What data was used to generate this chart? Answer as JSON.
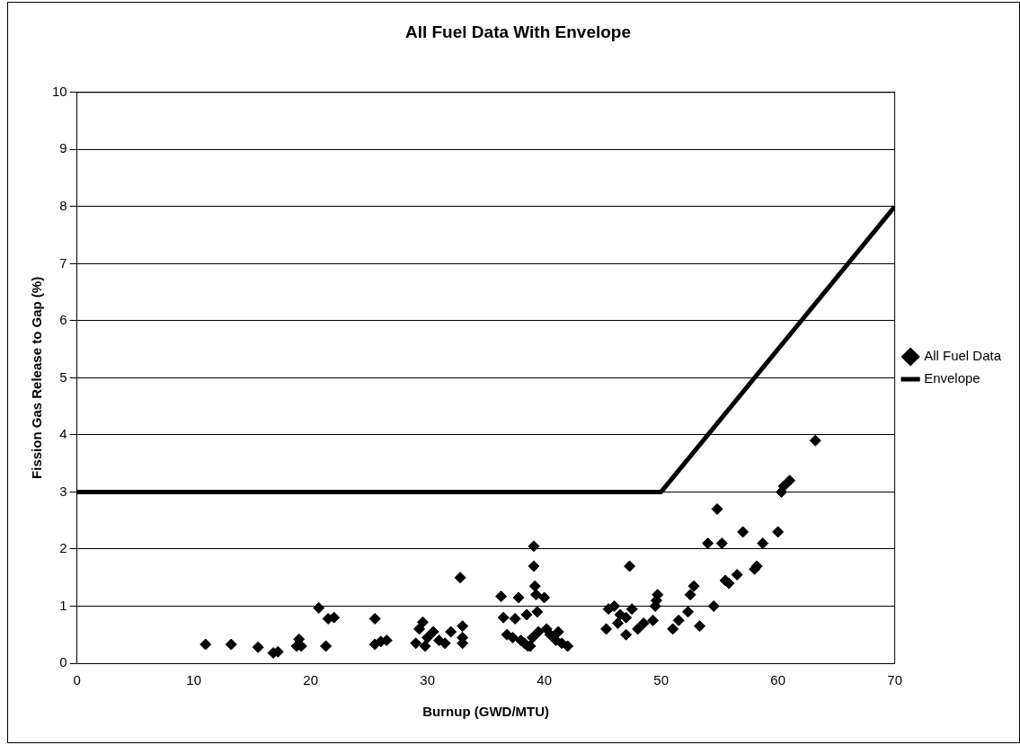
{
  "chart_data": {
    "type": "scatter",
    "title": "All Fuel Data With Envelope",
    "xlabel": "Burnup (GWD/MTU)",
    "ylabel": "Fission Gas Release to Gap (%)",
    "xlim": [
      0,
      70
    ],
    "xticks": [
      0,
      10,
      20,
      30,
      40,
      50,
      60,
      70
    ],
    "ylim": [
      0,
      10
    ],
    "yticks": [
      0,
      1,
      2,
      3,
      4,
      5,
      6,
      7,
      8,
      9,
      10
    ],
    "grid": "y",
    "legend": "right",
    "series": [
      {
        "name": "All Fuel Data",
        "type": "scatter",
        "marker": "diamond",
        "color": "#000000",
        "x": [
          11,
          13.2,
          15.5,
          16.8,
          17.2,
          18.8,
          19,
          19.2,
          20.7,
          21.5,
          22,
          21.3,
          25.5,
          25.5,
          26,
          26.5,
          29,
          29.3,
          29.6,
          29.8,
          30,
          30.5,
          31,
          31.5,
          32,
          32.8,
          33,
          33,
          33,
          36.3,
          36.5,
          36.8,
          37.3,
          37.5,
          37.8,
          38,
          38.3,
          38.5,
          38.6,
          38.8,
          39,
          39.1,
          39.1,
          39.2,
          39.3,
          39.4,
          39.5,
          40,
          40.2,
          40.5,
          41,
          41.2,
          41.5,
          42,
          45.3,
          45.5,
          46,
          46.3,
          46.5,
          47,
          47,
          47.3,
          47.5,
          48,
          48.5,
          49.3,
          49.5,
          49.6,
          49.7,
          51,
          51.5,
          52.3,
          52.5,
          52.8,
          53.3,
          54,
          54.5,
          54.8,
          55.2,
          55.5,
          55.8,
          56.5,
          57,
          58,
          58.2,
          58.7,
          60,
          60.3,
          60.5,
          61,
          63.2
        ],
        "values": [
          0.33,
          0.33,
          0.28,
          0.18,
          0.2,
          0.3,
          0.42,
          0.3,
          0.97,
          0.78,
          0.8,
          0.3,
          0.78,
          0.33,
          0.38,
          0.4,
          0.35,
          0.6,
          0.72,
          0.3,
          0.45,
          0.55,
          0.4,
          0.35,
          0.55,
          1.5,
          0.65,
          0.35,
          0.45,
          1.17,
          0.8,
          0.5,
          0.45,
          0.78,
          1.15,
          0.4,
          0.35,
          0.85,
          0.3,
          0.3,
          0.45,
          2.05,
          1.7,
          1.35,
          1.2,
          0.9,
          0.55,
          1.15,
          0.6,
          0.5,
          0.4,
          0.55,
          0.35,
          0.3,
          0.6,
          0.95,
          1.0,
          0.7,
          0.85,
          0.5,
          0.8,
          1.7,
          0.95,
          0.6,
          0.7,
          0.75,
          1.0,
          1.1,
          1.2,
          0.6,
          0.75,
          0.9,
          1.2,
          1.35,
          0.65,
          2.1,
          1.0,
          2.7,
          2.1,
          1.45,
          1.4,
          1.55,
          2.3,
          1.65,
          1.7,
          2.1,
          2.3,
          3.0,
          3.1,
          3.2,
          3.9
        ]
      },
      {
        "name": "Envelope",
        "type": "line",
        "marker": "none",
        "color": "#000000",
        "x": [
          0,
          50,
          70
        ],
        "values": [
          3,
          3,
          8
        ]
      }
    ]
  }
}
